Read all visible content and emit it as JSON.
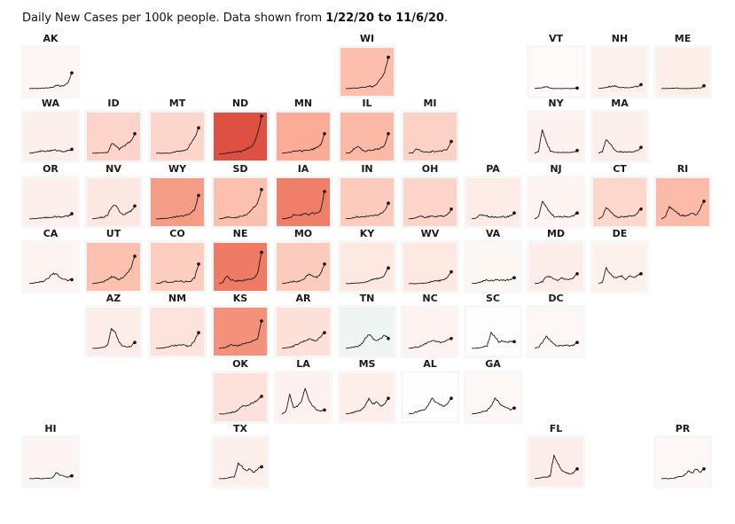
{
  "caption": {
    "prefix": "Daily New Cases per 100k people. Data shown from ",
    "range": "1/22/20 to 11/6/20",
    "suffix": "."
  },
  "chart_data": {
    "type": "line",
    "title": "Daily New Cases per 100k people. Data shown from 1/22/20 to 11/6/20.",
    "xlabel": "",
    "ylabel": "Daily New Cases per 100k",
    "date_range": [
      "1/22/20",
      "11/6/20"
    ],
    "layout": "US tile-grid map, one sparkline per state; tile color = current intensity",
    "color_scale": "white-to-red (TN shown slightly greenish-gray)",
    "states": [
      {
        "abbr": "AK",
        "row": 0,
        "col": 0,
        "color": "#fdf6f4",
        "shape": [
          0.05,
          0.05,
          0.05,
          0.06,
          0.06,
          0.07,
          0.08,
          0.15,
          0.1,
          0.12,
          0.2,
          0.45
        ]
      },
      {
        "abbr": "WI",
        "row": 0,
        "col": 5,
        "color": "#fcbfad",
        "shape": [
          0.05,
          0.05,
          0.06,
          0.06,
          0.08,
          0.08,
          0.12,
          0.1,
          0.15,
          0.3,
          0.45,
          0.85
        ]
      },
      {
        "abbr": "VT",
        "row": 0,
        "col": 8,
        "color": "#fefafa",
        "shape": [
          0.05,
          0.06,
          0.07,
          0.1,
          0.06,
          0.05,
          0.05,
          0.05,
          0.05,
          0.05,
          0.05,
          0.06
        ]
      },
      {
        "abbr": "NH",
        "row": 0,
        "col": 9,
        "color": "#fdf1ed",
        "shape": [
          0.05,
          0.06,
          0.08,
          0.1,
          0.12,
          0.09,
          0.08,
          0.07,
          0.07,
          0.08,
          0.1,
          0.15
        ]
      },
      {
        "abbr": "ME",
        "row": 0,
        "col": 10,
        "color": "#fdeee8",
        "shape": [
          0.05,
          0.05,
          0.05,
          0.06,
          0.06,
          0.05,
          0.05,
          0.05,
          0.05,
          0.06,
          0.07,
          0.12
        ]
      },
      {
        "abbr": "WA",
        "row": 1,
        "col": 0,
        "color": "#fdefea",
        "shape": [
          0.05,
          0.06,
          0.08,
          0.1,
          0.1,
          0.11,
          0.12,
          0.13,
          0.11,
          0.1,
          0.11,
          0.15
        ]
      },
      {
        "abbr": "ID",
        "row": 1,
        "col": 1,
        "color": "#fdd4ca",
        "shape": [
          0.05,
          0.05,
          0.06,
          0.06,
          0.07,
          0.3,
          0.25,
          0.15,
          0.22,
          0.3,
          0.35,
          0.55
        ]
      },
      {
        "abbr": "MT",
        "row": 1,
        "col": 2,
        "color": "#fdd5cb",
        "shape": [
          0.05,
          0.05,
          0.05,
          0.05,
          0.06,
          0.08,
          0.1,
          0.12,
          0.15,
          0.3,
          0.45,
          0.7
        ]
      },
      {
        "abbr": "ND",
        "row": 1,
        "col": 3,
        "color": "#de5142",
        "shape": [
          0.03,
          0.04,
          0.05,
          0.06,
          0.08,
          0.09,
          0.1,
          0.15,
          0.2,
          0.3,
          0.55,
          1.0
        ]
      },
      {
        "abbr": "MN",
        "row": 1,
        "col": 4,
        "color": "#fbab96",
        "shape": [
          0.05,
          0.06,
          0.08,
          0.1,
          0.12,
          0.11,
          0.12,
          0.13,
          0.15,
          0.2,
          0.25,
          0.55
        ]
      },
      {
        "abbr": "IL",
        "row": 1,
        "col": 5,
        "color": "#fcb9a6",
        "shape": [
          0.05,
          0.06,
          0.15,
          0.22,
          0.15,
          0.1,
          0.12,
          0.14,
          0.15,
          0.18,
          0.25,
          0.55
        ]
      },
      {
        "abbr": "MI",
        "row": 1,
        "col": 6,
        "color": "#fdd2c6",
        "shape": [
          0.05,
          0.06,
          0.15,
          0.12,
          0.08,
          0.08,
          0.09,
          0.1,
          0.1,
          0.12,
          0.15,
          0.35
        ]
      },
      {
        "abbr": "NY",
        "row": 1,
        "col": 8,
        "color": "#fdf2ef",
        "shape": [
          0.05,
          0.1,
          0.65,
          0.35,
          0.12,
          0.08,
          0.07,
          0.07,
          0.07,
          0.07,
          0.08,
          0.12
        ]
      },
      {
        "abbr": "MA",
        "row": 1,
        "col": 9,
        "color": "#fdefea",
        "shape": [
          0.05,
          0.1,
          0.4,
          0.3,
          0.15,
          0.1,
          0.08,
          0.08,
          0.08,
          0.1,
          0.12,
          0.2
        ]
      },
      {
        "abbr": "OR",
        "row": 2,
        "col": 0,
        "color": "#fdefea",
        "shape": [
          0.05,
          0.05,
          0.06,
          0.07,
          0.08,
          0.09,
          0.1,
          0.1,
          0.1,
          0.11,
          0.12,
          0.18
        ]
      },
      {
        "abbr": "NV",
        "row": 2,
        "col": 1,
        "color": "#fde7e1",
        "shape": [
          0.05,
          0.06,
          0.08,
          0.1,
          0.15,
          0.35,
          0.4,
          0.25,
          0.15,
          0.2,
          0.25,
          0.38
        ]
      },
      {
        "abbr": "WY",
        "row": 2,
        "col": 2,
        "color": "#f59c86",
        "shape": [
          0.05,
          0.05,
          0.06,
          0.07,
          0.08,
          0.1,
          0.12,
          0.12,
          0.15,
          0.2,
          0.3,
          0.65
        ]
      },
      {
        "abbr": "SD",
        "row": 2,
        "col": 3,
        "color": "#fcc0ae",
        "shape": [
          0.05,
          0.06,
          0.1,
          0.08,
          0.08,
          0.1,
          0.12,
          0.15,
          0.25,
          0.35,
          0.45,
          0.8
        ]
      },
      {
        "abbr": "IA",
        "row": 2,
        "col": 4,
        "color": "#ef7f69",
        "shape": [
          0.05,
          0.06,
          0.08,
          0.15,
          0.12,
          0.15,
          0.18,
          0.15,
          0.2,
          0.18,
          0.25,
          0.75
        ]
      },
      {
        "abbr": "IN",
        "row": 2,
        "col": 5,
        "color": "#fdcbbe",
        "shape": [
          0.05,
          0.06,
          0.08,
          0.1,
          0.1,
          0.11,
          0.12,
          0.14,
          0.15,
          0.18,
          0.25,
          0.45
        ]
      },
      {
        "abbr": "OH",
        "row": 2,
        "col": 6,
        "color": "#fdd4ca",
        "shape": [
          0.05,
          0.06,
          0.08,
          0.12,
          0.08,
          0.1,
          0.12,
          0.11,
          0.12,
          0.12,
          0.15,
          0.3
        ]
      },
      {
        "abbr": "PA",
        "row": 2,
        "col": 7,
        "color": "#fdebe6",
        "shape": [
          0.05,
          0.06,
          0.14,
          0.14,
          0.12,
          0.1,
          0.1,
          0.1,
          0.1,
          0.1,
          0.12,
          0.2
        ]
      },
      {
        "abbr": "NJ",
        "row": 2,
        "col": 8,
        "color": "#fdf3f0",
        "shape": [
          0.05,
          0.1,
          0.5,
          0.35,
          0.2,
          0.12,
          0.1,
          0.1,
          0.1,
          0.1,
          0.12,
          0.2
        ]
      },
      {
        "abbr": "CT",
        "row": 2,
        "col": 9,
        "color": "#fdd6cc",
        "shape": [
          0.05,
          0.1,
          0.35,
          0.25,
          0.15,
          0.1,
          0.1,
          0.1,
          0.12,
          0.12,
          0.2,
          0.3
        ]
      },
      {
        "abbr": "RI",
        "row": 2,
        "col": 10,
        "color": "#fcbba8",
        "shape": [
          0.05,
          0.1,
          0.35,
          0.3,
          0.2,
          0.15,
          0.12,
          0.15,
          0.2,
          0.15,
          0.3,
          0.5
        ]
      },
      {
        "abbr": "CA",
        "row": 3,
        "col": 0,
        "color": "#fdf3f0",
        "shape": [
          0.05,
          0.06,
          0.08,
          0.1,
          0.12,
          0.2,
          0.3,
          0.3,
          0.2,
          0.15,
          0.13,
          0.15
        ]
      },
      {
        "abbr": "UT",
        "row": 3,
        "col": 1,
        "color": "#fcc1af",
        "shape": [
          0.05,
          0.06,
          0.08,
          0.1,
          0.15,
          0.22,
          0.2,
          0.15,
          0.22,
          0.3,
          0.45,
          0.75
        ]
      },
      {
        "abbr": "CO",
        "row": 3,
        "col": 2,
        "color": "#fdcdc0",
        "shape": [
          0.05,
          0.06,
          0.1,
          0.1,
          0.08,
          0.1,
          0.12,
          0.1,
          0.1,
          0.12,
          0.2,
          0.55
        ]
      },
      {
        "abbr": "NE",
        "row": 3,
        "col": 3,
        "color": "#ef7b65",
        "shape": [
          0.05,
          0.08,
          0.25,
          0.15,
          0.12,
          0.12,
          0.12,
          0.15,
          0.15,
          0.2,
          0.3,
          0.85
        ]
      },
      {
        "abbr": "MO",
        "row": 3,
        "col": 4,
        "color": "#fdcbbe",
        "shape": [
          0.05,
          0.06,
          0.08,
          0.1,
          0.1,
          0.12,
          0.2,
          0.3,
          0.25,
          0.2,
          0.3,
          0.55
        ]
      },
      {
        "abbr": "KY",
        "row": 3,
        "col": 5,
        "color": "#fde8e2",
        "shape": [
          0.05,
          0.05,
          0.06,
          0.06,
          0.07,
          0.08,
          0.12,
          0.15,
          0.18,
          0.2,
          0.25,
          0.45
        ]
      },
      {
        "abbr": "WV",
        "row": 3,
        "col": 6,
        "color": "#fde8e2",
        "shape": [
          0.05,
          0.05,
          0.05,
          0.06,
          0.06,
          0.07,
          0.1,
          0.12,
          0.12,
          0.15,
          0.2,
          0.35
        ]
      },
      {
        "abbr": "VA",
        "row": 3,
        "col": 7,
        "color": "#fdf7f4",
        "shape": [
          0.05,
          0.06,
          0.08,
          0.12,
          0.15,
          0.12,
          0.14,
          0.14,
          0.13,
          0.14,
          0.15,
          0.2
        ]
      },
      {
        "abbr": "MD",
        "row": 3,
        "col": 8,
        "color": "#fdedea",
        "shape": [
          0.05,
          0.06,
          0.1,
          0.22,
          0.22,
          0.15,
          0.12,
          0.2,
          0.15,
          0.15,
          0.18,
          0.3
        ]
      },
      {
        "abbr": "DE",
        "row": 3,
        "col": 9,
        "color": "#fdf1ee",
        "shape": [
          0.05,
          0.08,
          0.45,
          0.3,
          0.2,
          0.2,
          0.25,
          0.15,
          0.25,
          0.2,
          0.25,
          0.3
        ]
      },
      {
        "abbr": "AZ",
        "row": 4,
        "col": 1,
        "color": "#fdede8",
        "shape": [
          0.05,
          0.05,
          0.06,
          0.08,
          0.15,
          0.55,
          0.45,
          0.2,
          0.1,
          0.1,
          0.1,
          0.2
        ]
      },
      {
        "abbr": "NM",
        "row": 4,
        "col": 2,
        "color": "#fde3dc",
        "shape": [
          0.05,
          0.05,
          0.06,
          0.08,
          0.1,
          0.12,
          0.12,
          0.15,
          0.1,
          0.12,
          0.25,
          0.45
        ]
      },
      {
        "abbr": "KS",
        "row": 4,
        "col": 3,
        "color": "#f3917a",
        "shape": [
          0.05,
          0.06,
          0.08,
          0.15,
          0.12,
          0.12,
          0.15,
          0.2,
          0.2,
          0.25,
          0.3,
          0.75
        ]
      },
      {
        "abbr": "AR",
        "row": 4,
        "col": 4,
        "color": "#fde0d8",
        "shape": [
          0.05,
          0.06,
          0.08,
          0.1,
          0.15,
          0.2,
          0.25,
          0.3,
          0.25,
          0.25,
          0.35,
          0.45
        ]
      },
      {
        "abbr": "TN",
        "row": 4,
        "col": 5,
        "color": "#eef5f3",
        "shape": [
          0.05,
          0.06,
          0.08,
          0.1,
          0.15,
          0.3,
          0.4,
          0.3,
          0.25,
          0.3,
          0.4,
          0.3
        ]
      },
      {
        "abbr": "NC",
        "row": 4,
        "col": 6,
        "color": "#fdf4f1",
        "shape": [
          0.05,
          0.06,
          0.08,
          0.1,
          0.15,
          0.2,
          0.25,
          0.22,
          0.2,
          0.2,
          0.25,
          0.3
        ]
      },
      {
        "abbr": "SC",
        "row": 4,
        "col": 7,
        "color": "#fdfdfd",
        "shape": [
          0.05,
          0.05,
          0.06,
          0.08,
          0.12,
          0.45,
          0.35,
          0.2,
          0.25,
          0.2,
          0.22,
          0.22
        ]
      },
      {
        "abbr": "DC",
        "row": 4,
        "col": 8,
        "color": "#fdf8f6",
        "shape": [
          0.05,
          0.08,
          0.2,
          0.35,
          0.25,
          0.15,
          0.12,
          0.12,
          0.12,
          0.12,
          0.13,
          0.2
        ]
      },
      {
        "abbr": "OK",
        "row": 5,
        "col": 3,
        "color": "#fde2db",
        "shape": [
          0.05,
          0.05,
          0.06,
          0.08,
          0.1,
          0.15,
          0.25,
          0.25,
          0.3,
          0.35,
          0.4,
          0.5
        ]
      },
      {
        "abbr": "LA",
        "row": 5,
        "col": 4,
        "color": "#fdf2ef",
        "shape": [
          0.05,
          0.1,
          0.55,
          0.2,
          0.25,
          0.35,
          0.7,
          0.4,
          0.25,
          0.15,
          0.12,
          0.15
        ]
      },
      {
        "abbr": "MS",
        "row": 5,
        "col": 5,
        "color": "#fdeeea",
        "shape": [
          0.05,
          0.06,
          0.1,
          0.12,
          0.15,
          0.25,
          0.45,
          0.3,
          0.35,
          0.25,
          0.3,
          0.45
        ]
      },
      {
        "abbr": "AL",
        "row": 5,
        "col": 6,
        "color": "#fefefe",
        "shape": [
          0.05,
          0.06,
          0.1,
          0.12,
          0.15,
          0.25,
          0.45,
          0.35,
          0.3,
          0.25,
          0.3,
          0.45
        ]
      },
      {
        "abbr": "GA",
        "row": 5,
        "col": 7,
        "color": "#fdf8f5",
        "shape": [
          0.05,
          0.06,
          0.08,
          0.12,
          0.14,
          0.25,
          0.45,
          0.35,
          0.25,
          0.2,
          0.15,
          0.2
        ]
      },
      {
        "abbr": "HI",
        "row": 6,
        "col": 0,
        "color": "#fdf5f3",
        "shape": [
          0.05,
          0.05,
          0.06,
          0.05,
          0.05,
          0.06,
          0.07,
          0.2,
          0.15,
          0.1,
          0.1,
          0.12
        ]
      },
      {
        "abbr": "TX",
        "row": 6,
        "col": 3,
        "color": "#fdefea",
        "shape": [
          0.05,
          0.05,
          0.06,
          0.08,
          0.1,
          0.45,
          0.35,
          0.25,
          0.3,
          0.2,
          0.3,
          0.35
        ]
      },
      {
        "abbr": "FL",
        "row": 6,
        "col": 8,
        "color": "#fdede8",
        "shape": [
          0.05,
          0.06,
          0.08,
          0.1,
          0.12,
          0.65,
          0.45,
          0.25,
          0.2,
          0.18,
          0.2,
          0.3
        ]
      },
      {
        "abbr": "PR",
        "row": 6,
        "col": 10,
        "color": "#fdf8f6",
        "shape": [
          0.05,
          0.05,
          0.05,
          0.06,
          0.08,
          0.1,
          0.15,
          0.25,
          0.2,
          0.3,
          0.2,
          0.3
        ]
      }
    ]
  }
}
